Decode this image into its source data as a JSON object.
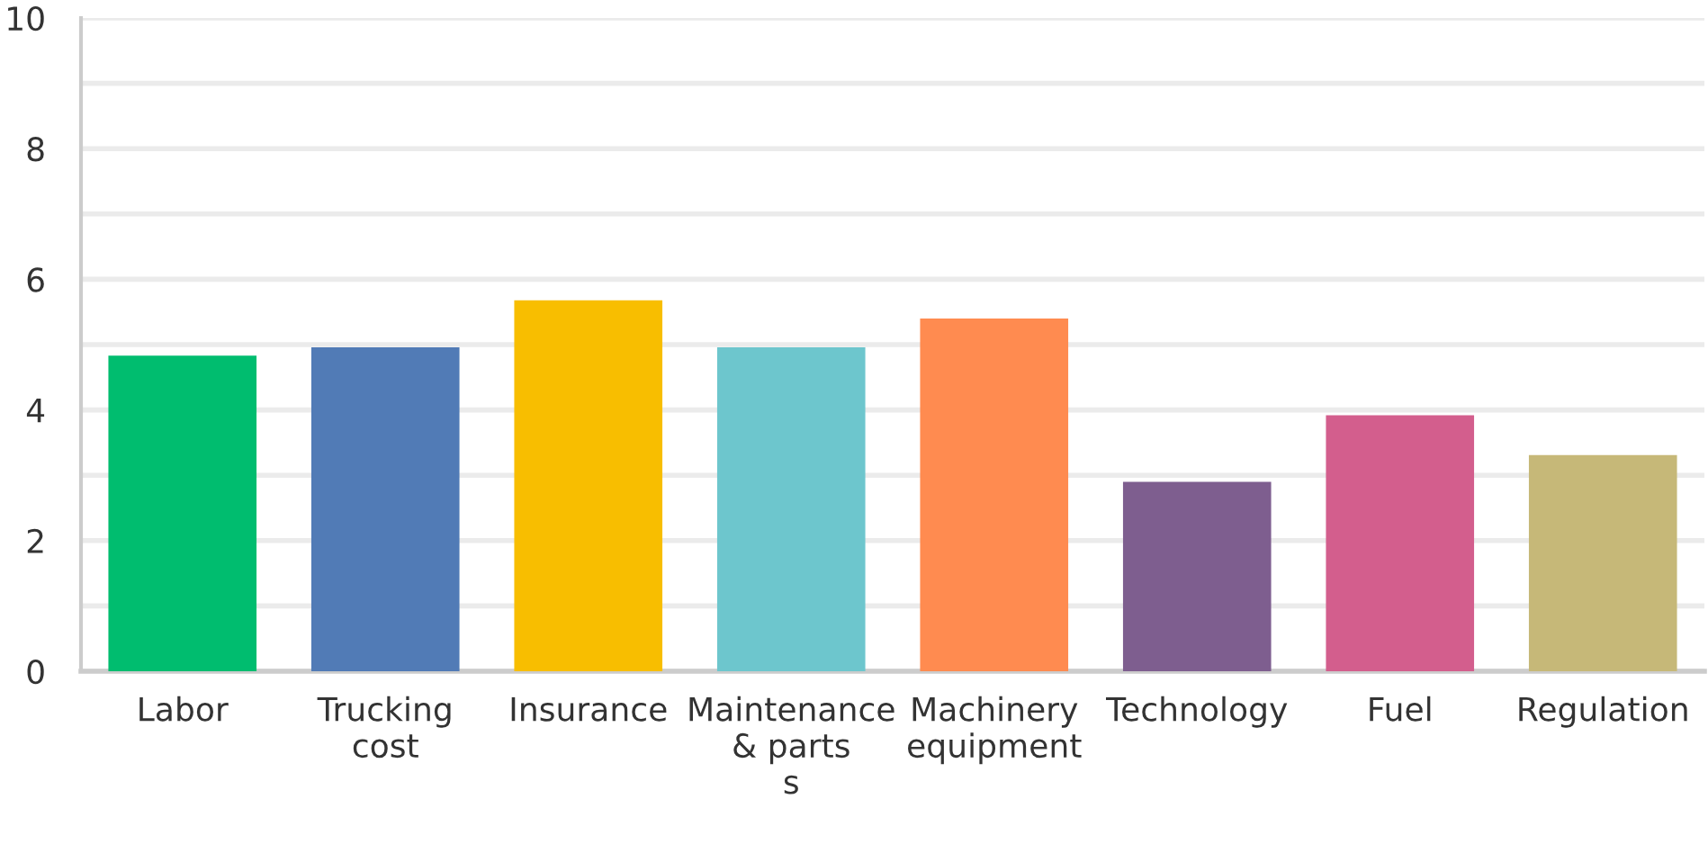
{
  "chart_data": {
    "type": "bar",
    "categories": [
      "Labor",
      "Trucking\ncost",
      "Insurance",
      "Maintenance\n& parts\ns",
      "Machinery\nequipment",
      "Technology",
      "Fuel",
      "Regulation"
    ],
    "values": [
      4.83,
      4.96,
      5.68,
      4.96,
      5.4,
      2.9,
      3.92,
      3.31
    ],
    "colors": [
      "#00bd6f",
      "#517bb6",
      "#f8be00",
      "#6dc6cd",
      "#ff8b50",
      "#7e5e8f",
      "#d35e8d",
      "#c6b878"
    ],
    "ylim": [
      0,
      10
    ],
    "yticks": [
      0,
      {
        "value": 1,
        "label": null
      },
      2,
      {
        "value": 3,
        "label": null
      },
      4,
      {
        "value": 5,
        "label": null
      },
      6,
      {
        "value": 7,
        "label": null
      },
      8,
      {
        "value": 9,
        "label": null
      },
      10
    ],
    "grid": "y"
  }
}
